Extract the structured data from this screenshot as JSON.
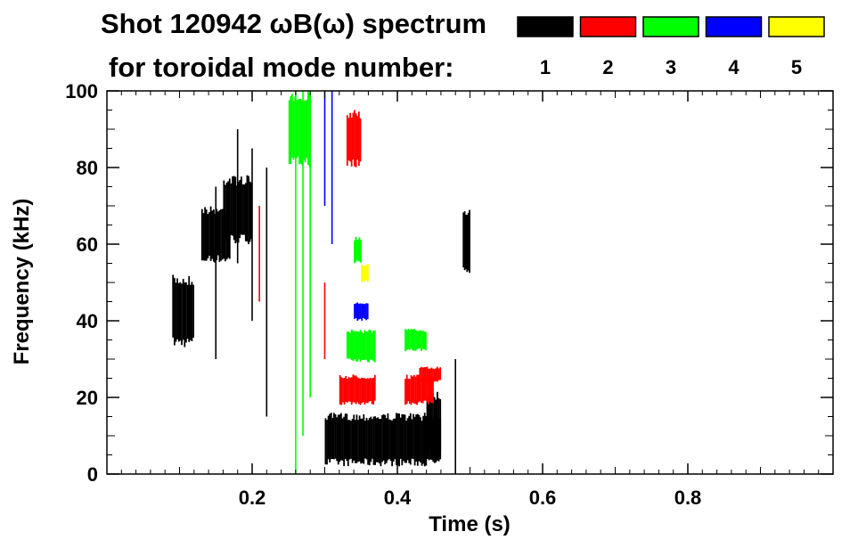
{
  "chart_data": {
    "type": "heatmap",
    "title": "Shot 120942 ωB(ω) spectrum",
    "subtitle": "for toroidal mode number:",
    "xlabel": "Time (s)",
    "ylabel": "Frequency (kHz)",
    "xlim": [
      0.0,
      1.0
    ],
    "ylim": [
      0,
      100
    ],
    "x_ticks": [
      0.2,
      0.4,
      0.6,
      0.8
    ],
    "x_tick_labels": [
      "0.2",
      "0.4",
      "0.6",
      "0.8"
    ],
    "y_ticks": [
      0,
      20,
      40,
      60,
      80,
      100
    ],
    "y_tick_labels": [
      "0",
      "20",
      "40",
      "60",
      "80",
      "100"
    ],
    "legend_position": "top-right",
    "series": [
      {
        "name": "1",
        "color": "#000000"
      },
      {
        "name": "2",
        "color": "#ff0000"
      },
      {
        "name": "3",
        "color": "#00ff00"
      },
      {
        "name": "4",
        "color": "#0000ff"
      },
      {
        "name": "5",
        "color": "#ffff00"
      }
    ],
    "regions": [
      {
        "mode": "1",
        "t": [
          0.09,
          0.12
        ],
        "f": [
          33,
          52
        ]
      },
      {
        "mode": "1",
        "t": [
          0.13,
          0.17
        ],
        "f": [
          55,
          70
        ]
      },
      {
        "mode": "1",
        "t": [
          0.16,
          0.2
        ],
        "f": [
          60,
          78
        ]
      },
      {
        "mode": "1",
        "t": [
          0.3,
          0.46
        ],
        "f": [
          2,
          16
        ]
      },
      {
        "mode": "1",
        "t": [
          0.44,
          0.46
        ],
        "f": [
          4,
          22
        ]
      },
      {
        "mode": "1",
        "t": [
          0.49,
          0.5
        ],
        "f": [
          52,
          70
        ]
      },
      {
        "mode": "2",
        "t": [
          0.33,
          0.35
        ],
        "f": [
          80,
          95
        ]
      },
      {
        "mode": "2",
        "t": [
          0.32,
          0.37
        ],
        "f": [
          18,
          26
        ]
      },
      {
        "mode": "2",
        "t": [
          0.41,
          0.45
        ],
        "f": [
          18,
          26
        ]
      },
      {
        "mode": "2",
        "t": [
          0.43,
          0.46
        ],
        "f": [
          24,
          28
        ]
      },
      {
        "mode": "3",
        "t": [
          0.25,
          0.28
        ],
        "f": [
          80,
          100
        ]
      },
      {
        "mode": "3",
        "t": [
          0.33,
          0.37
        ],
        "f": [
          29,
          38
        ]
      },
      {
        "mode": "3",
        "t": [
          0.41,
          0.44
        ],
        "f": [
          32,
          38
        ]
      },
      {
        "mode": "3",
        "t": [
          0.34,
          0.35
        ],
        "f": [
          55,
          62
        ]
      },
      {
        "mode": "4",
        "t": [
          0.34,
          0.36
        ],
        "f": [
          40,
          45
        ]
      },
      {
        "mode": "5",
        "t": [
          0.35,
          0.36
        ],
        "f": [
          50,
          55
        ]
      }
    ],
    "lines": [
      {
        "mode": "3",
        "t": 0.26,
        "f": [
          0,
          100
        ]
      },
      {
        "mode": "3",
        "t": 0.27,
        "f": [
          10,
          100
        ]
      },
      {
        "mode": "3",
        "t": 0.28,
        "f": [
          20,
          100
        ]
      },
      {
        "mode": "4",
        "t": 0.3,
        "f": [
          70,
          100
        ]
      },
      {
        "mode": "4",
        "t": 0.31,
        "f": [
          60,
          100
        ]
      },
      {
        "mode": "1",
        "t": 0.2,
        "f": [
          40,
          85
        ]
      },
      {
        "mode": "1",
        "t": 0.22,
        "f": [
          15,
          80
        ]
      },
      {
        "mode": "1",
        "t": 0.18,
        "f": [
          55,
          90
        ]
      },
      {
        "mode": "1",
        "t": 0.15,
        "f": [
          30,
          75
        ]
      },
      {
        "mode": "2",
        "t": 0.21,
        "f": [
          45,
          70
        ]
      },
      {
        "mode": "2",
        "t": 0.3,
        "f": [
          30,
          50
        ]
      },
      {
        "mode": "1",
        "t": 0.48,
        "f": [
          0,
          30
        ]
      }
    ]
  }
}
